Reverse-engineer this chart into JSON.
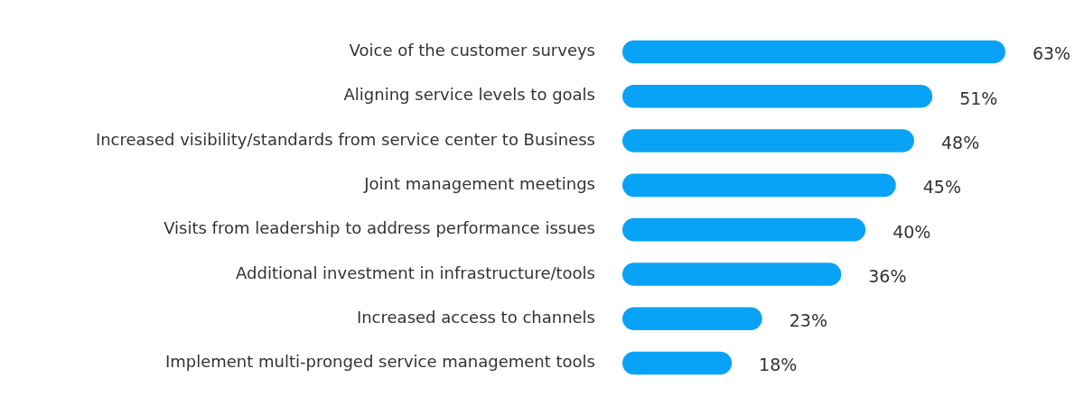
{
  "chart_data": {
    "type": "bar",
    "orientation": "horizontal",
    "categories": [
      "Voice of the customer surveys",
      "Aligning service levels to goals",
      "Increased visibility/standards from service center to Business",
      "Joint management meetings",
      "Visits from leadership to address performance issues",
      "Additional investment in infrastructure/tools",
      "Increased access to channels",
      "Implement multi-pronged service management tools"
    ],
    "values": [
      63,
      51,
      48,
      45,
      40,
      36,
      23,
      18
    ],
    "value_labels": [
      "63%",
      "51%",
      "48%",
      "45%",
      "40%",
      "36%",
      "23%",
      "18%"
    ],
    "color": "#08a2f6"
  }
}
